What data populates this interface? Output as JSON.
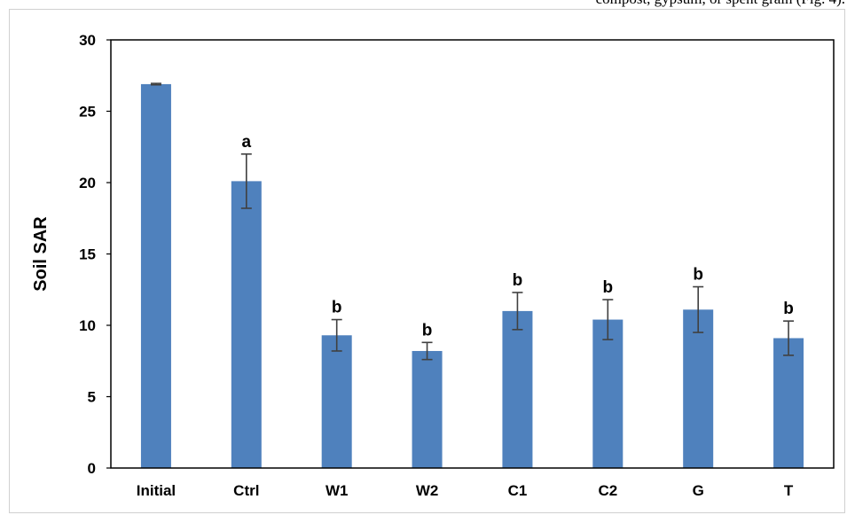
{
  "top_caption": "compost, gypsum, or spent grain (Fig. 4).",
  "chart_data": {
    "type": "bar",
    "title": "",
    "xlabel": "",
    "ylabel": "Soil SAR",
    "ylim": [
      0,
      30
    ],
    "yticks": [
      0,
      5,
      10,
      15,
      20,
      25,
      30
    ],
    "grid": false,
    "legend": "none",
    "bar_color": "#4f81bd",
    "categories": [
      "Initial",
      "Ctrl",
      "W1",
      "W2",
      "C1",
      "C2",
      "G",
      "T"
    ],
    "values": [
      26.9,
      20.1,
      9.3,
      8.2,
      11.0,
      10.4,
      11.1,
      9.1
    ],
    "errors": [
      0.05,
      1.9,
      1.1,
      0.6,
      1.3,
      1.4,
      1.6,
      1.2
    ],
    "significance": [
      "",
      "a",
      "b",
      "b",
      "b",
      "b",
      "b",
      "b"
    ]
  }
}
